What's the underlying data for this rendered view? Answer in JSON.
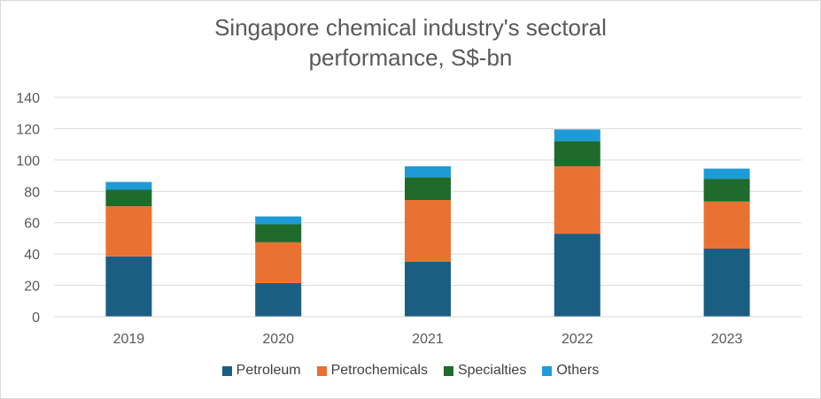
{
  "chart_data": {
    "type": "bar",
    "stacked": true,
    "title_line1": "Singapore chemical industry's sectoral",
    "title_line2": "performance, S$-bn",
    "categories": [
      "2019",
      "2020",
      "2021",
      "2022",
      "2023"
    ],
    "series": [
      {
        "name": "Petroleum",
        "color": "#1b5e83",
        "values": [
          38.5,
          21.5,
          35,
          53,
          43.5
        ]
      },
      {
        "name": "Petrochemicals",
        "color": "#e97132",
        "values": [
          32,
          26,
          39.5,
          43,
          30
        ]
      },
      {
        "name": "Specialties",
        "color": "#1e6b2b",
        "values": [
          10.5,
          11.5,
          14.5,
          16,
          14.5
        ]
      },
      {
        "name": "Others",
        "color": "#1e9bd7",
        "values": [
          5,
          5,
          7,
          7.5,
          6.5
        ]
      }
    ],
    "yticks": [
      "0",
      "20",
      "40",
      "60",
      "80",
      "100",
      "120",
      "140"
    ],
    "ylim": [
      0,
      140
    ],
    "xlabel": "",
    "ylabel": "",
    "grid": true,
    "legend_position": "bottom"
  }
}
